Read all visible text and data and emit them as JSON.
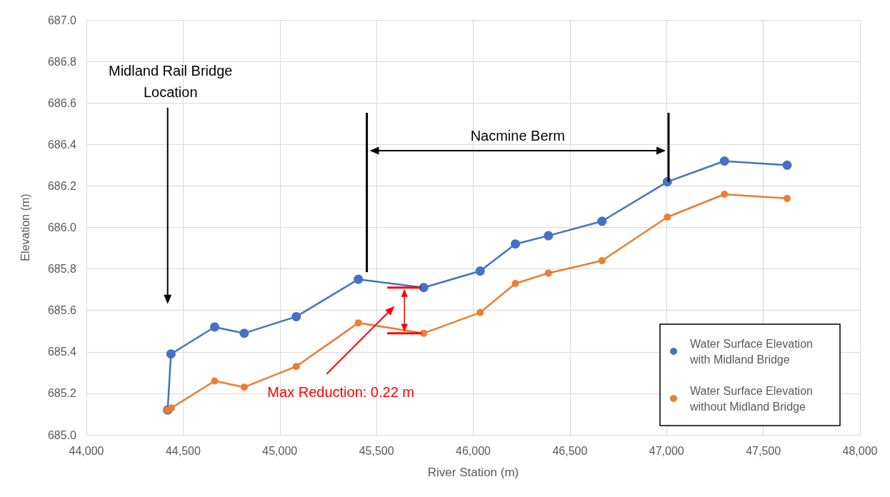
{
  "chart_data": {
    "type": "line",
    "xlabel": "River Station (m)",
    "ylabel": "Elevation (m)",
    "xlim": [
      44000,
      48000
    ],
    "xticks": [
      {
        "value": 44000,
        "label": "44,000"
      },
      {
        "value": 44500,
        "label": "44,500"
      },
      {
        "value": 45000,
        "label": "45,000"
      },
      {
        "value": 45500,
        "label": "45,500"
      },
      {
        "value": 46000,
        "label": "46,000"
      },
      {
        "value": 46500,
        "label": "46,500"
      },
      {
        "value": 47000,
        "label": "47,000"
      },
      {
        "value": 47500,
        "label": "47,500"
      },
      {
        "value": 48000,
        "label": "48,000"
      }
    ],
    "ylim": [
      685,
      687
    ],
    "yticks": [
      {
        "value": 685,
        "label": "685.0"
      },
      {
        "value": 685.2,
        "label": "685.2"
      },
      {
        "value": 685.4,
        "label": "685.4"
      },
      {
        "value": 685.6,
        "label": "685.6"
      },
      {
        "value": 685.8,
        "label": "685.8"
      },
      {
        "value": 686,
        "label": "686.0"
      },
      {
        "value": 686.2,
        "label": "686.2"
      },
      {
        "value": 686.4,
        "label": "686.4"
      },
      {
        "value": 686.6,
        "label": "686.6"
      },
      {
        "value": 686.8,
        "label": "686.8"
      },
      {
        "value": 687,
        "label": "687.0"
      }
    ],
    "grid": true,
    "legend": "bottom right",
    "marker": "circle",
    "line_style": "solid",
    "series": [
      {
        "name": "Water Surface Elevation with Midland Bridge",
        "color": "#4472c4",
        "x": [
          44420,
          44437,
          44663,
          44816,
          45085,
          45406,
          45744,
          46036,
          46218,
          46389,
          46666,
          47004,
          47299,
          47623
        ],
        "values": [
          685.12,
          685.39,
          685.52,
          685.49,
          685.57,
          685.75,
          685.71,
          685.79,
          685.92,
          685.96,
          686.03,
          686.22,
          686.32,
          686.3
        ]
      },
      {
        "name": "Water Surface Elevation without Midland Bridge",
        "color": "#ed7d31",
        "x": [
          44419,
          44440,
          44663,
          44816,
          45085,
          45406,
          45744,
          46036,
          46218,
          46389,
          46666,
          47004,
          47299,
          47623
        ],
        "values": [
          685.12,
          685.13,
          685.26,
          685.23,
          685.33,
          685.54,
          685.49,
          685.59,
          685.73,
          685.78,
          685.84,
          686.05,
          686.16,
          686.14
        ]
      }
    ],
    "ref_lines": [
      {
        "axis": "x",
        "value": 45450,
        "color": "#000000"
      },
      {
        "axis": "x",
        "value": 47010,
        "color": "#000000"
      }
    ],
    "annotations": [
      "Midland Rail Bridge Location",
      "Nacmine Berm",
      "Max Reduction: 0.22 m"
    ]
  }
}
